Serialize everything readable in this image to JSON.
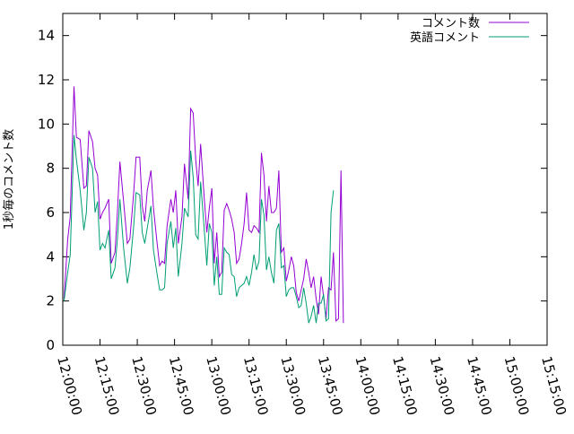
{
  "chart_data": {
    "type": "line",
    "title": "",
    "xlabel": "",
    "ylabel": "1秒毎のコメント数",
    "ylim": [
      0,
      15
    ],
    "yticks": [
      0,
      2,
      4,
      6,
      8,
      10,
      12,
      14
    ],
    "xlim": [
      "12:00:00",
      "15:15:00"
    ],
    "xticks": [
      "12:00:00",
      "12:15:00",
      "12:30:00",
      "12:45:00",
      "13:00:00",
      "13:15:00",
      "13:30:00",
      "13:45:00",
      "14:00:00",
      "14:15:00",
      "14:30:00",
      "14:45:00",
      "15:00:00",
      "15:15:00"
    ],
    "grid": false,
    "legend_position": "top-right",
    "series": [
      {
        "name": "コメント数",
        "color": "#9400d3",
        "points": [
          [
            "12:00:30",
            2.1
          ],
          [
            "12:02:00",
            4.8
          ],
          [
            "12:03:00",
            5.8
          ],
          [
            "12:04:30",
            11.7
          ],
          [
            "12:05:30",
            9.4
          ],
          [
            "12:07:00",
            9.3
          ],
          [
            "12:08:30",
            7.1
          ],
          [
            "12:09:30",
            7.2
          ],
          [
            "12:10:30",
            9.7
          ],
          [
            "12:12:00",
            9.2
          ],
          [
            "12:13:00",
            8.0
          ],
          [
            "12:14:00",
            7.7
          ],
          [
            "12:15:00",
            5.7
          ],
          [
            "12:16:00",
            6.0
          ],
          [
            "12:17:00",
            6.2
          ],
          [
            "12:18:30",
            6.6
          ],
          [
            "12:19:30",
            3.7
          ],
          [
            "12:21:00",
            4.2
          ],
          [
            "12:22:00",
            6.0
          ],
          [
            "12:23:00",
            8.3
          ],
          [
            "12:24:30",
            6.5
          ],
          [
            "12:26:00",
            4.6
          ],
          [
            "12:27:00",
            4.8
          ],
          [
            "12:28:30",
            6.8
          ],
          [
            "12:29:30",
            8.5
          ],
          [
            "12:31:00",
            8.5
          ],
          [
            "12:32:00",
            6.3
          ],
          [
            "12:33:00",
            5.6
          ],
          [
            "12:34:00",
            7.0
          ],
          [
            "12:35:30",
            7.9
          ],
          [
            "12:36:30",
            6.2
          ],
          [
            "12:38:00",
            4.6
          ],
          [
            "12:39:00",
            3.6
          ],
          [
            "12:40:00",
            3.8
          ],
          [
            "12:41:00",
            3.7
          ],
          [
            "12:42:00",
            5.4
          ],
          [
            "12:43:30",
            6.6
          ],
          [
            "12:44:30",
            6.0
          ],
          [
            "12:45:30",
            7.0
          ],
          [
            "12:46:30",
            4.6
          ],
          [
            "12:48:00",
            5.8
          ],
          [
            "12:49:00",
            8.2
          ],
          [
            "12:50:30",
            6.6
          ],
          [
            "12:51:30",
            10.7
          ],
          [
            "12:52:30",
            10.5
          ],
          [
            "12:53:30",
            8.4
          ],
          [
            "12:54:30",
            7.2
          ],
          [
            "12:55:30",
            9.1
          ],
          [
            "12:57:00",
            6.6
          ],
          [
            "12:58:00",
            5.1
          ],
          [
            "12:59:00",
            6.2
          ],
          [
            "13:00:00",
            7.1
          ],
          [
            "13:01:00",
            3.7
          ],
          [
            "13:02:00",
            5.1
          ],
          [
            "13:03:00",
            3.1
          ],
          [
            "13:04:00",
            3.3
          ],
          [
            "13:05:00",
            6.1
          ],
          [
            "13:06:00",
            6.4
          ],
          [
            "13:07:00",
            6.1
          ],
          [
            "13:08:00",
            5.7
          ],
          [
            "13:09:00",
            5.1
          ],
          [
            "13:10:00",
            3.7
          ],
          [
            "13:11:00",
            3.9
          ],
          [
            "13:12:00",
            4.6
          ],
          [
            "13:13:00",
            5.5
          ],
          [
            "13:14:00",
            6.9
          ],
          [
            "13:15:00",
            5.2
          ],
          [
            "13:16:00",
            5.1
          ],
          [
            "13:17:00",
            5.4
          ],
          [
            "13:18:00",
            5.3
          ],
          [
            "13:19:00",
            5.1
          ],
          [
            "13:20:00",
            8.7
          ],
          [
            "13:21:00",
            7.7
          ],
          [
            "13:22:00",
            5.6
          ],
          [
            "13:23:00",
            7.2
          ],
          [
            "13:24:00",
            6.0
          ],
          [
            "13:25:00",
            6.0
          ],
          [
            "13:26:00",
            6.2
          ],
          [
            "13:27:00",
            7.9
          ],
          [
            "13:28:00",
            4.2
          ],
          [
            "13:29:00",
            4.4
          ],
          [
            "13:30:00",
            2.9
          ],
          [
            "13:31:00",
            3.4
          ],
          [
            "13:32:00",
            4.0
          ],
          [
            "13:33:00",
            3.6
          ],
          [
            "13:34:00",
            2.4
          ],
          [
            "13:35:00",
            2.0
          ],
          [
            "13:36:00",
            2.5
          ],
          [
            "13:37:00",
            3.0
          ],
          [
            "13:38:00",
            3.9
          ],
          [
            "13:39:00",
            3.3
          ],
          [
            "13:40:00",
            2.6
          ],
          [
            "13:41:00",
            3.1
          ],
          [
            "13:42:00",
            2.1
          ],
          [
            "13:43:00",
            1.4
          ],
          [
            "13:44:00",
            3.1
          ],
          [
            "13:45:00",
            2.2
          ],
          [
            "13:46:00",
            1.2
          ],
          [
            "13:47:00",
            2.6
          ],
          [
            "13:48:00",
            2.5
          ],
          [
            "13:49:00",
            4.2
          ],
          [
            "13:50:00",
            1.1
          ],
          [
            "13:51:00",
            1.2
          ],
          [
            "13:52:00",
            7.9
          ],
          [
            "13:53:00",
            1.0
          ]
        ]
      },
      {
        "name": "英語コメント",
        "color": "#009e73",
        "points": [
          [
            "12:00:30",
            2.0
          ],
          [
            "12:02:00",
            3.3
          ],
          [
            "12:03:00",
            4.1
          ],
          [
            "12:04:30",
            9.5
          ],
          [
            "12:05:30",
            8.4
          ],
          [
            "12:07:00",
            7.0
          ],
          [
            "12:08:30",
            5.2
          ],
          [
            "12:09:30",
            6.0
          ],
          [
            "12:10:30",
            8.5
          ],
          [
            "12:12:00",
            8.0
          ],
          [
            "12:13:00",
            6.0
          ],
          [
            "12:14:00",
            6.5
          ],
          [
            "12:15:00",
            4.3
          ],
          [
            "12:16:00",
            4.6
          ],
          [
            "12:17:00",
            4.4
          ],
          [
            "12:18:30",
            5.2
          ],
          [
            "12:19:30",
            3.0
          ],
          [
            "12:21:00",
            3.5
          ],
          [
            "12:22:00",
            4.8
          ],
          [
            "12:23:00",
            6.6
          ],
          [
            "12:24:30",
            4.4
          ],
          [
            "12:26:00",
            2.8
          ],
          [
            "12:27:00",
            3.5
          ],
          [
            "12:28:30",
            5.3
          ],
          [
            "12:29:30",
            6.9
          ],
          [
            "12:31:00",
            6.8
          ],
          [
            "12:32:00",
            5.1
          ],
          [
            "12:33:00",
            4.6
          ],
          [
            "12:34:00",
            5.3
          ],
          [
            "12:35:30",
            6.3
          ],
          [
            "12:36:30",
            4.3
          ],
          [
            "12:38:00",
            3.2
          ],
          [
            "12:39:00",
            2.5
          ],
          [
            "12:40:00",
            2.5
          ],
          [
            "12:41:00",
            2.6
          ],
          [
            "12:42:00",
            4.6
          ],
          [
            "12:43:30",
            5.6
          ],
          [
            "12:44:30",
            4.4
          ],
          [
            "12:45:30",
            5.3
          ],
          [
            "12:46:30",
            3.1
          ],
          [
            "12:48:00",
            4.6
          ],
          [
            "12:49:00",
            6.2
          ],
          [
            "12:50:30",
            5.8
          ],
          [
            "12:51:30",
            8.8
          ],
          [
            "12:52:30",
            7.6
          ],
          [
            "12:53:30",
            5.0
          ],
          [
            "12:54:30",
            4.8
          ],
          [
            "12:55:30",
            7.4
          ],
          [
            "12:57:00",
            5.2
          ],
          [
            "12:58:00",
            3.6
          ],
          [
            "12:59:00",
            5.5
          ],
          [
            "13:00:00",
            5.1
          ],
          [
            "13:01:00",
            2.7
          ],
          [
            "13:02:00",
            4.0
          ],
          [
            "13:03:00",
            2.3
          ],
          [
            "13:04:00",
            2.3
          ],
          [
            "13:05:00",
            4.4
          ],
          [
            "13:06:00",
            4.2
          ],
          [
            "13:07:00",
            4.1
          ],
          [
            "13:08:00",
            3.2
          ],
          [
            "13:09:00",
            3.1
          ],
          [
            "13:10:00",
            2.2
          ],
          [
            "13:11:00",
            2.6
          ],
          [
            "13:12:00",
            2.7
          ],
          [
            "13:13:00",
            2.8
          ],
          [
            "13:14:00",
            3.1
          ],
          [
            "13:15:00",
            2.7
          ],
          [
            "13:16:00",
            3.3
          ],
          [
            "13:17:00",
            4.1
          ],
          [
            "13:18:00",
            3.4
          ],
          [
            "13:19:00",
            3.8
          ],
          [
            "13:20:00",
            6.6
          ],
          [
            "13:21:00",
            5.9
          ],
          [
            "13:22:00",
            3.4
          ],
          [
            "13:23:00",
            4.0
          ],
          [
            "13:24:00",
            3.3
          ],
          [
            "13:25:00",
            2.8
          ],
          [
            "13:26:00",
            5.2
          ],
          [
            "13:27:00",
            5.5
          ],
          [
            "13:28:00",
            3.5
          ],
          [
            "13:29:00",
            3.6
          ],
          [
            "13:30:00",
            2.2
          ],
          [
            "13:31:00",
            2.5
          ],
          [
            "13:32:00",
            2.6
          ],
          [
            "13:33:00",
            2.6
          ],
          [
            "13:34:00",
            2.2
          ],
          [
            "13:35:00",
            1.7
          ],
          [
            "13:36:00",
            1.8
          ],
          [
            "13:37:00",
            2.6
          ],
          [
            "13:38:00",
            1.9
          ],
          [
            "13:39:00",
            1.0
          ],
          [
            "13:40:00",
            1.3
          ],
          [
            "13:41:00",
            1.8
          ],
          [
            "13:42:00",
            1.0
          ],
          [
            "13:43:00",
            1.9
          ],
          [
            "13:44:00",
            1.9
          ],
          [
            "13:45:00",
            2.3
          ],
          [
            "13:46:00",
            1.1
          ],
          [
            "13:47:00",
            1.2
          ],
          [
            "13:48:00",
            6.0
          ],
          [
            "13:49:00",
            7.0
          ]
        ]
      }
    ]
  }
}
